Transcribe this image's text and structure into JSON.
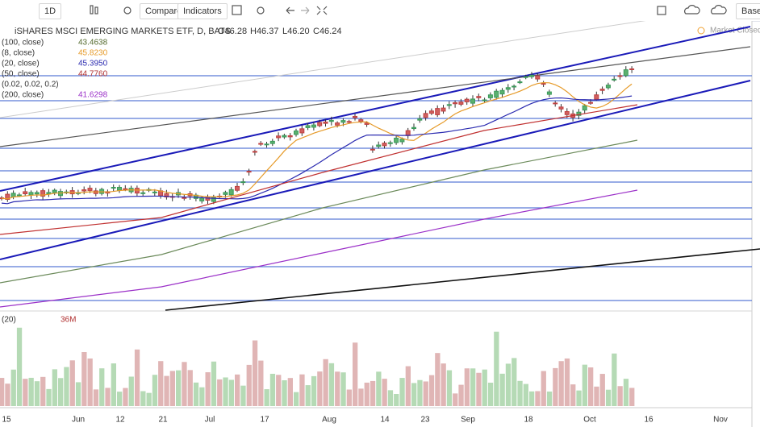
{
  "toolbar": {
    "interval": "1D",
    "compare": "Compare",
    "indicators": "Indicators",
    "base": "Base"
  },
  "status": "Market Closed",
  "legend": {
    "title": "iSHARES MSCI EMERGING MARKETS ETF, D, BATS",
    "open": "O46.28",
    "high": "H46.37",
    "low": "L46.20",
    "close": "C46.24"
  },
  "indicators": [
    {
      "params": "(100, close)",
      "value": "43.4638",
      "color": "#556b2f"
    },
    {
      "params": "(8, close)",
      "value": "45.8230",
      "color": "#e69a28"
    },
    {
      "params": "(20, close)",
      "value": "45.3950",
      "color": "#2b2bb0"
    },
    {
      "params": "(50, close)",
      "value": "44.7760",
      "color": "#b03030"
    },
    {
      "params": "(0.02, 0.02, 0.2)",
      "value": null,
      "color": "#999999"
    },
    {
      "params": "(200, close)",
      "value": "41.6298",
      "color": "#9b30c8"
    }
  ],
  "volume": {
    "params": "(20)",
    "value": "36M"
  },
  "x_axis": [
    "15",
    "Jun",
    "12",
    "21",
    "Jul",
    "17",
    "Aug",
    "14",
    "23",
    "Sep",
    "18",
    "Oct",
    "16",
    "Nov"
  ]
}
